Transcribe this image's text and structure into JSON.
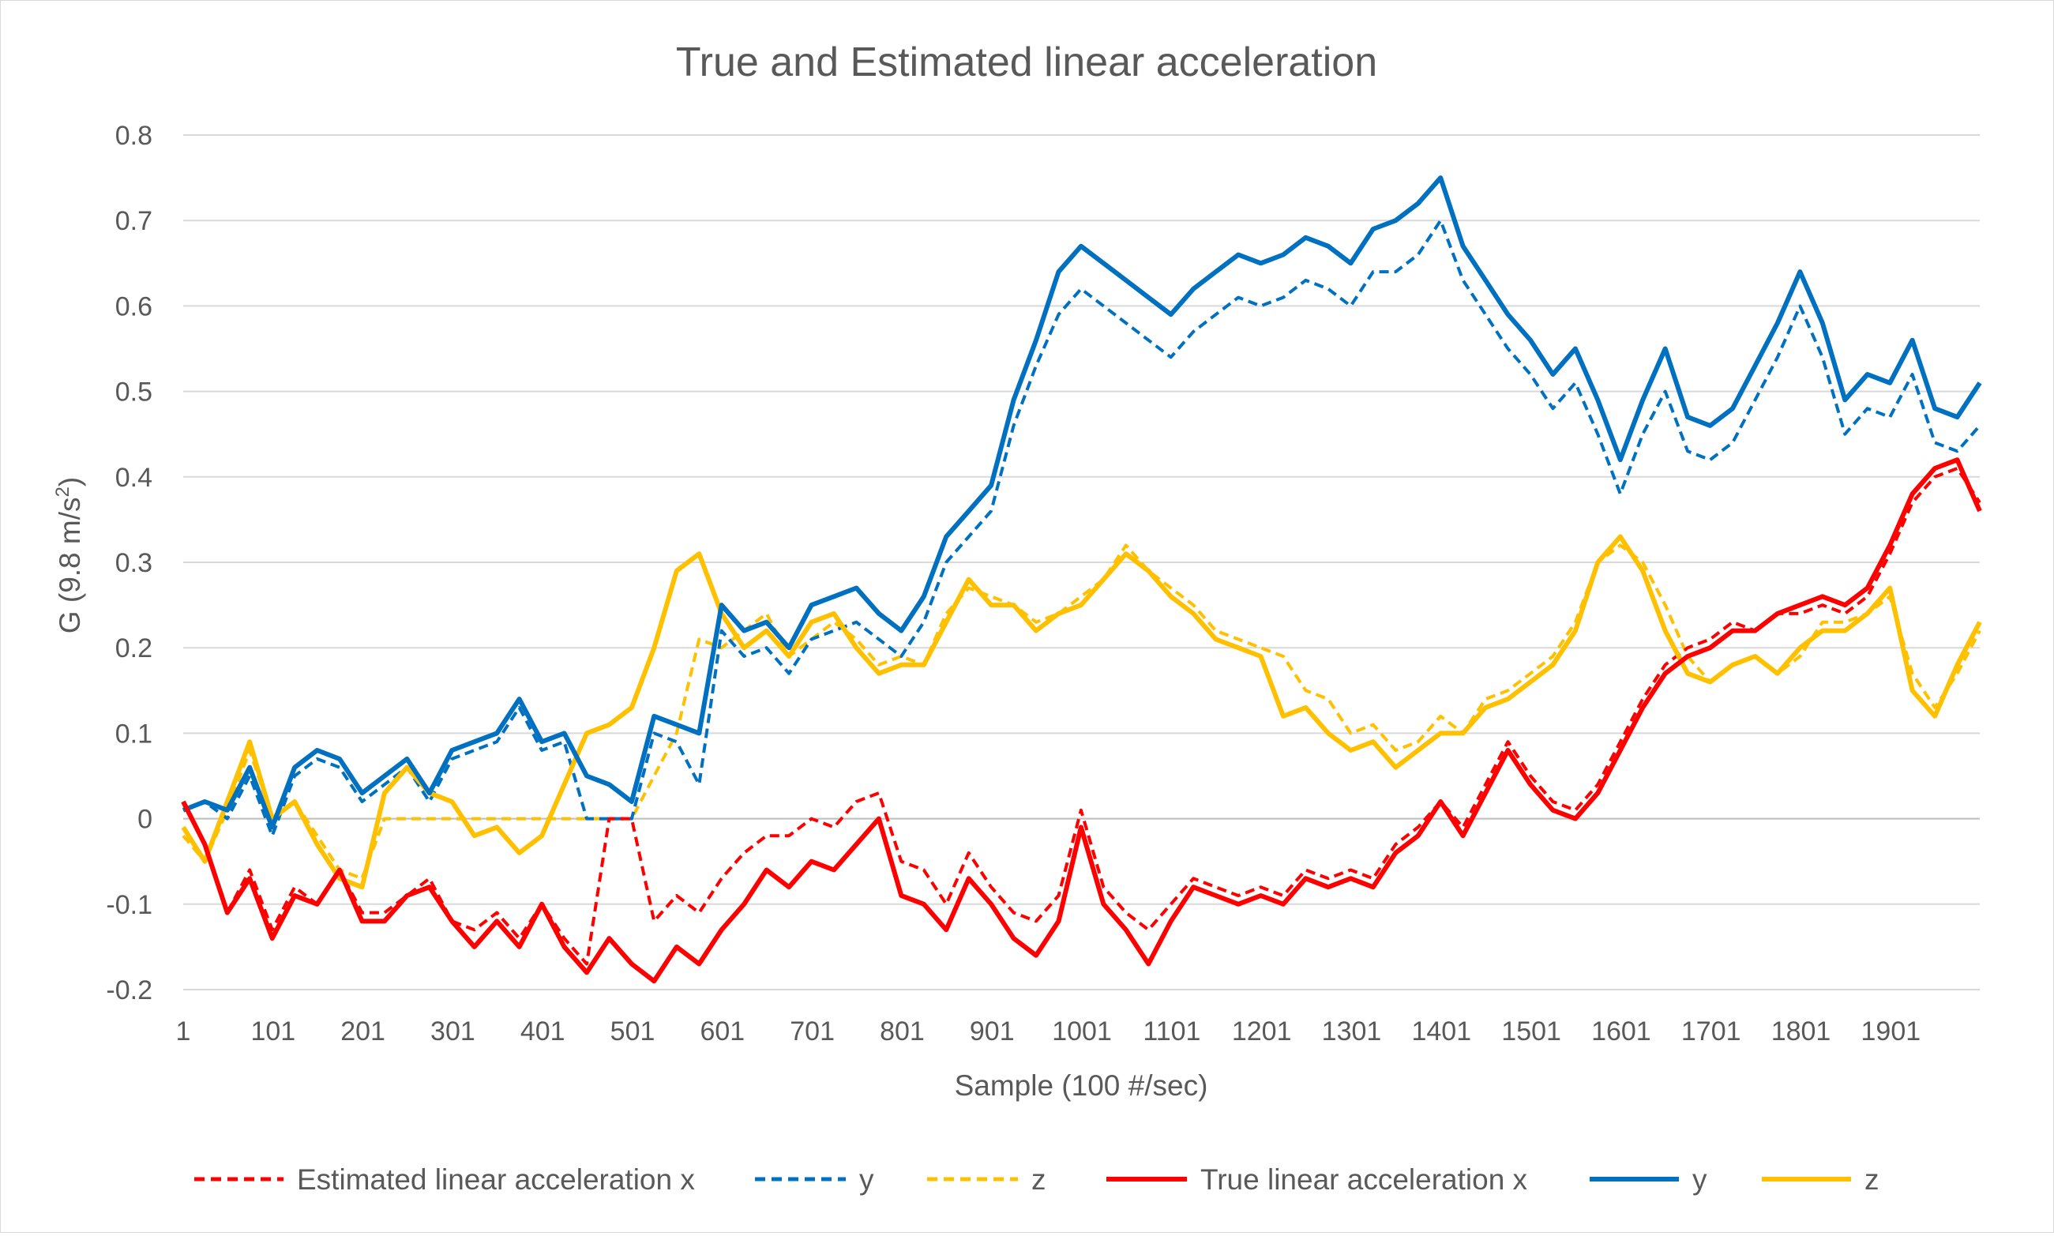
{
  "chart_data": {
    "type": "line",
    "title": "True and Estimated linear acceleration",
    "xlabel": "Sample (100 #/sec)",
    "ylabel": "G (9.8 m/s²)",
    "ylabel_main": "G (9.8 m/s",
    "ylabel_sup": "2",
    "ylabel_close": ")",
    "xlim": [
      1,
      2000
    ],
    "ylim": [
      -0.2,
      0.8
    ],
    "grid": true,
    "legend_position": "bottom",
    "x_ticks": [
      "1",
      "101",
      "201",
      "301",
      "401",
      "501",
      "601",
      "701",
      "801",
      "901",
      "1001",
      "1101",
      "1201",
      "1301",
      "1401",
      "1501",
      "1601",
      "1701",
      "1801",
      "1901"
    ],
    "y_ticks": [
      "-0.2",
      "-0.1",
      "0",
      "0.1",
      "0.2",
      "0.3",
      "0.4",
      "0.5",
      "0.6",
      "0.7",
      "0.8"
    ],
    "x": [
      1,
      25,
      50,
      75,
      100,
      125,
      150,
      175,
      200,
      225,
      250,
      275,
      300,
      325,
      350,
      375,
      400,
      425,
      450,
      475,
      500,
      525,
      550,
      575,
      600,
      625,
      650,
      675,
      700,
      725,
      750,
      775,
      800,
      825,
      850,
      875,
      900,
      925,
      950,
      975,
      1000,
      1025,
      1050,
      1075,
      1100,
      1125,
      1150,
      1175,
      1200,
      1225,
      1250,
      1275,
      1300,
      1325,
      1350,
      1375,
      1400,
      1425,
      1450,
      1475,
      1500,
      1525,
      1550,
      1575,
      1600,
      1625,
      1650,
      1675,
      1700,
      1725,
      1750,
      1775,
      1800,
      1825,
      1850,
      1875,
      1900,
      1925,
      1950,
      1975,
      2000
    ],
    "series": [
      {
        "name": "Estimated linear acceleration x",
        "legend_label": "Estimated linear acceleration x",
        "color": "#FF0000",
        "style": "dashed",
        "values": [
          0.02,
          -0.03,
          -0.11,
          -0.06,
          -0.13,
          -0.08,
          -0.1,
          -0.06,
          -0.11,
          -0.11,
          -0.09,
          -0.07,
          -0.12,
          -0.13,
          -0.11,
          -0.14,
          -0.1,
          -0.14,
          -0.17,
          0,
          0,
          -0.12,
          -0.09,
          -0.11,
          -0.07,
          -0.04,
          -0.02,
          -0.02,
          0,
          -0.01,
          0.02,
          0.03,
          -0.05,
          -0.06,
          -0.1,
          -0.04,
          -0.08,
          -0.11,
          -0.12,
          -0.09,
          0.01,
          -0.08,
          -0.11,
          -0.13,
          -0.1,
          -0.07,
          -0.08,
          -0.09,
          -0.08,
          -0.09,
          -0.06,
          -0.07,
          -0.06,
          -0.07,
          -0.03,
          -0.01,
          0.02,
          -0.01,
          0.04,
          0.09,
          0.05,
          0.02,
          0.01,
          0.04,
          0.09,
          0.14,
          0.18,
          0.2,
          0.21,
          0.23,
          0.22,
          0.24,
          0.24,
          0.25,
          0.24,
          0.26,
          0.31,
          0.37,
          0.4,
          0.41,
          0.37
        ]
      },
      {
        "name": "y",
        "legend_label": "y",
        "color": "#0070C0",
        "style": "dashed",
        "values": [
          0.01,
          0.02,
          0,
          0.05,
          -0.02,
          0.05,
          0.07,
          0.06,
          0.02,
          0.04,
          0.06,
          0.02,
          0.07,
          0.08,
          0.09,
          0.13,
          0.08,
          0.09,
          0,
          0,
          0,
          0.1,
          0.09,
          0.04,
          0.22,
          0.19,
          0.2,
          0.17,
          0.21,
          0.22,
          0.23,
          0.21,
          0.19,
          0.23,
          0.3,
          0.33,
          0.36,
          0.46,
          0.53,
          0.59,
          0.62,
          0.6,
          0.58,
          0.56,
          0.54,
          0.57,
          0.59,
          0.61,
          0.6,
          0.61,
          0.63,
          0.62,
          0.6,
          0.64,
          0.64,
          0.66,
          0.7,
          0.63,
          0.59,
          0.55,
          0.52,
          0.48,
          0.51,
          0.45,
          0.38,
          0.45,
          0.5,
          0.43,
          0.42,
          0.44,
          0.49,
          0.54,
          0.6,
          0.54,
          0.45,
          0.48,
          0.47,
          0.52,
          0.44,
          0.43,
          0.46
        ]
      },
      {
        "name": "z",
        "legend_label": "z",
        "color": "#FFC000",
        "style": "dashed",
        "values": [
          -0.02,
          -0.05,
          0.01,
          0.08,
          0,
          0.02,
          -0.02,
          -0.06,
          -0.07,
          0,
          0,
          0,
          0,
          0,
          0,
          0,
          0,
          0,
          0,
          0,
          0,
          0.05,
          0.1,
          0.21,
          0.2,
          0.22,
          0.24,
          0.19,
          0.21,
          0.23,
          0.21,
          0.18,
          0.19,
          0.18,
          0.24,
          0.27,
          0.26,
          0.25,
          0.23,
          0.24,
          0.26,
          0.28,
          0.32,
          0.29,
          0.27,
          0.25,
          0.22,
          0.21,
          0.2,
          0.19,
          0.15,
          0.14,
          0.1,
          0.11,
          0.08,
          0.09,
          0.12,
          0.1,
          0.14,
          0.15,
          0.17,
          0.19,
          0.23,
          0.3,
          0.32,
          0.3,
          0.25,
          0.19,
          0.16,
          0.18,
          0.19,
          0.17,
          0.19,
          0.23,
          0.23,
          0.24,
          0.26,
          0.17,
          0.13,
          0.17,
          0.22
        ]
      },
      {
        "name": "True linear acceleration x",
        "legend_label": "True linear acceleration x",
        "color": "#FF0000",
        "style": "solid",
        "values": [
          0.02,
          -0.03,
          -0.11,
          -0.07,
          -0.14,
          -0.09,
          -0.1,
          -0.06,
          -0.12,
          -0.12,
          -0.09,
          -0.08,
          -0.12,
          -0.15,
          -0.12,
          -0.15,
          -0.1,
          -0.15,
          -0.18,
          -0.14,
          -0.17,
          -0.19,
          -0.15,
          -0.17,
          -0.13,
          -0.1,
          -0.06,
          -0.08,
          -0.05,
          -0.06,
          -0.03,
          0,
          -0.09,
          -0.1,
          -0.13,
          -0.07,
          -0.1,
          -0.14,
          -0.16,
          -0.12,
          -0.01,
          -0.1,
          -0.13,
          -0.17,
          -0.12,
          -0.08,
          -0.09,
          -0.1,
          -0.09,
          -0.1,
          -0.07,
          -0.08,
          -0.07,
          -0.08,
          -0.04,
          -0.02,
          0.02,
          -0.02,
          0.03,
          0.08,
          0.04,
          0.01,
          0,
          0.03,
          0.08,
          0.13,
          0.17,
          0.19,
          0.2,
          0.22,
          0.22,
          0.24,
          0.25,
          0.26,
          0.25,
          0.27,
          0.32,
          0.38,
          0.41,
          0.42,
          0.36
        ]
      },
      {
        "name": "y",
        "legend_label": "y",
        "color": "#0070C0",
        "style": "solid",
        "values": [
          0.01,
          0.02,
          0.01,
          0.06,
          -0.01,
          0.06,
          0.08,
          0.07,
          0.03,
          0.05,
          0.07,
          0.03,
          0.08,
          0.09,
          0.1,
          0.14,
          0.09,
          0.1,
          0.05,
          0.04,
          0.02,
          0.12,
          0.11,
          0.1,
          0.25,
          0.22,
          0.23,
          0.2,
          0.25,
          0.26,
          0.27,
          0.24,
          0.22,
          0.26,
          0.33,
          0.36,
          0.39,
          0.49,
          0.56,
          0.64,
          0.67,
          0.65,
          0.63,
          0.61,
          0.59,
          0.62,
          0.64,
          0.66,
          0.65,
          0.66,
          0.68,
          0.67,
          0.65,
          0.69,
          0.7,
          0.72,
          0.75,
          0.67,
          0.63,
          0.59,
          0.56,
          0.52,
          0.55,
          0.49,
          0.42,
          0.49,
          0.55,
          0.47,
          0.46,
          0.48,
          0.53,
          0.58,
          0.64,
          0.58,
          0.49,
          0.52,
          0.51,
          0.56,
          0.48,
          0.47,
          0.51
        ]
      },
      {
        "name": "z",
        "legend_label": "z",
        "color": "#FFC000",
        "style": "solid",
        "values": [
          -0.01,
          -0.05,
          0.02,
          0.09,
          0,
          0.02,
          -0.03,
          -0.07,
          -0.08,
          0.03,
          0.06,
          0.03,
          0.02,
          -0.02,
          -0.01,
          -0.04,
          -0.02,
          0.04,
          0.1,
          0.11,
          0.13,
          0.2,
          0.29,
          0.31,
          0.24,
          0.2,
          0.22,
          0.19,
          0.23,
          0.24,
          0.2,
          0.17,
          0.18,
          0.18,
          0.23,
          0.28,
          0.25,
          0.25,
          0.22,
          0.24,
          0.25,
          0.28,
          0.31,
          0.29,
          0.26,
          0.24,
          0.21,
          0.2,
          0.19,
          0.12,
          0.13,
          0.1,
          0.08,
          0.09,
          0.06,
          0.08,
          0.1,
          0.1,
          0.13,
          0.14,
          0.16,
          0.18,
          0.22,
          0.3,
          0.33,
          0.29,
          0.22,
          0.17,
          0.16,
          0.18,
          0.19,
          0.17,
          0.2,
          0.22,
          0.22,
          0.24,
          0.27,
          0.15,
          0.12,
          0.18,
          0.23
        ]
      }
    ]
  }
}
